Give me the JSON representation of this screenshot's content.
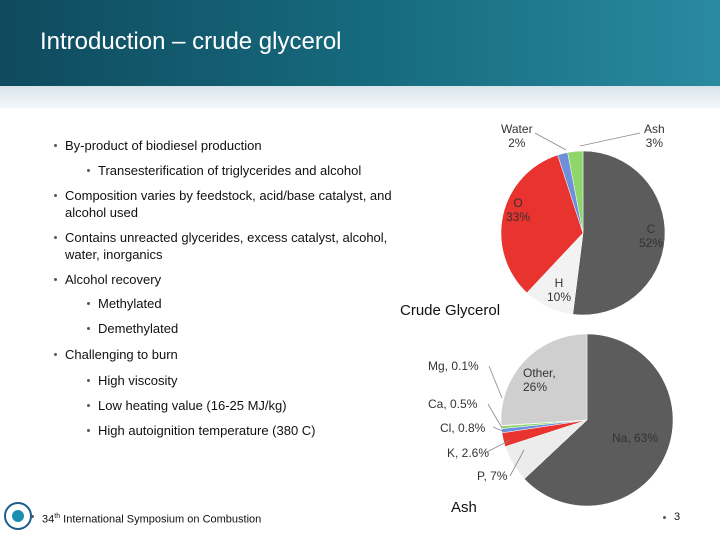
{
  "header": {
    "title": "Introduction – crude glycerol"
  },
  "bullets": [
    {
      "level": 1,
      "text": "By-product of biodiesel production"
    },
    {
      "level": 2,
      "text": "Transesterification of triglycerides and alcohol"
    },
    {
      "level": 1,
      "text": "Composition varies by feedstock, acid/base catalyst, and alcohol used"
    },
    {
      "level": 1,
      "text": "Contains unreacted glycerides, excess catalyst, alcohol, water, inorganics"
    },
    {
      "level": 1,
      "text": "Alcohol recovery"
    },
    {
      "level": 2,
      "text": "Methylated"
    },
    {
      "level": 2,
      "text": "Demethylated"
    },
    {
      "level": 1,
      "text": "Challenging to burn"
    },
    {
      "level": 2,
      "text": "High viscosity"
    },
    {
      "level": 2,
      "text": "Low heating value (16-25 MJ/kg)"
    },
    {
      "level": 2,
      "text": "High autoignition temperature (380 C)"
    }
  ],
  "chart_data": [
    {
      "type": "pie",
      "title": "Crude Glycerol",
      "categories": [
        "C",
        "H",
        "O",
        "Water",
        "Ash"
      ],
      "values": [
        52,
        10,
        33,
        2,
        3
      ],
      "value_labels": [
        "52%",
        "10%",
        "33%",
        "2%",
        "3%"
      ],
      "colors": [
        "#5c5c5c",
        "#f2f2f2",
        "#e8332f",
        "#6d8fdc",
        "#8fd66a"
      ]
    },
    {
      "type": "pie",
      "title": "Ash",
      "labels": [
        "Na, 63%",
        "P, 7%",
        "K, 2.6%",
        "Cl, 0.8%",
        "Ca, 0.5%",
        "Mg, 0.1%",
        "Other,\n26%"
      ],
      "values": [
        63,
        7,
        2.6,
        0.8,
        0.5,
        0.1,
        26
      ],
      "colors": [
        "#5c5c5c",
        "#ececec",
        "#e8332f",
        "#6d8fdc",
        "#8fd66a",
        "#9b6fd0",
        "#cfcfcf"
      ]
    }
  ],
  "footer": {
    "ordinal": "34",
    "superscript": "th",
    "text": "International Symposium on Combustion",
    "page": 3
  }
}
